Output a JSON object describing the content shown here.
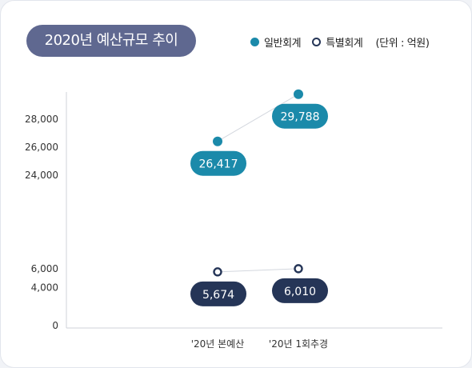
{
  "title": "2020년 예산규모 추이",
  "legend": {
    "general": "일반회계",
    "special": "특별회계",
    "unit": "(단위 : 억원)"
  },
  "colors": {
    "general": "#1b8aaa",
    "special": "#253557",
    "title_background": "#5f6890",
    "axis": "#cfd3da"
  },
  "chart_data": {
    "type": "line",
    "axis_break": true,
    "x": [
      "'20년 본예산",
      "'20년 1회추경"
    ],
    "yticks_lower": [
      0,
      4000,
      6000
    ],
    "yticks_upper": [
      24000,
      26000,
      28000
    ],
    "ytick_labels_lower": [
      "0",
      "4,000",
      "6,000"
    ],
    "ytick_labels_upper": [
      "24,000",
      "26,000",
      "28,000"
    ],
    "series": [
      {
        "name": "일반회계",
        "values": [
          26417,
          29788
        ],
        "labels": [
          "26,417",
          "29,788"
        ]
      },
      {
        "name": "특별회계",
        "values": [
          5674,
          6010
        ],
        "labels": [
          "5,674",
          "6,010"
        ]
      }
    ],
    "grid": false,
    "legend_position": "top-right"
  }
}
